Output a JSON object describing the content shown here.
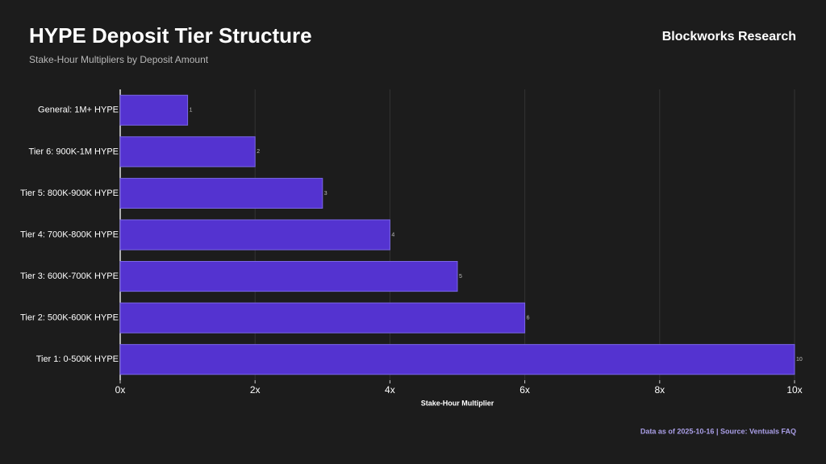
{
  "chart_data": {
    "type": "bar",
    "orientation": "horizontal",
    "title": "HYPE Deposit Tier Structure",
    "subtitle": "Stake-Hour Multipliers by Deposit Amount",
    "brand": "Blockworks Research",
    "source": "Data as of 2025-10-16 | Source: Ventuals FAQ",
    "x_label": "Stake-Hour Multiplier",
    "categories": [
      "General: 1M+ HYPE",
      "Tier 6: 900K-1M HYPE",
      "Tier 5: 800K-900K HYPE",
      "Tier 4: 700K-800K HYPE",
      "Tier 3: 600K-700K HYPE",
      "Tier 2: 500K-600K HYPE",
      "Tier 1: 0-500K HYPE"
    ],
    "values": [
      1,
      2,
      3,
      4,
      5,
      6,
      10
    ],
    "color": "#5433d0",
    "xlim": [
      0,
      10
    ],
    "xticks": [
      {
        "value": 0,
        "label": "0x"
      },
      {
        "value": 2,
        "label": "2x"
      },
      {
        "value": 4,
        "label": "4x"
      },
      {
        "value": 6,
        "label": "6x"
      },
      {
        "value": 8,
        "label": "8x"
      },
      {
        "value": 10,
        "label": "10x"
      }
    ],
    "grid": true
  }
}
